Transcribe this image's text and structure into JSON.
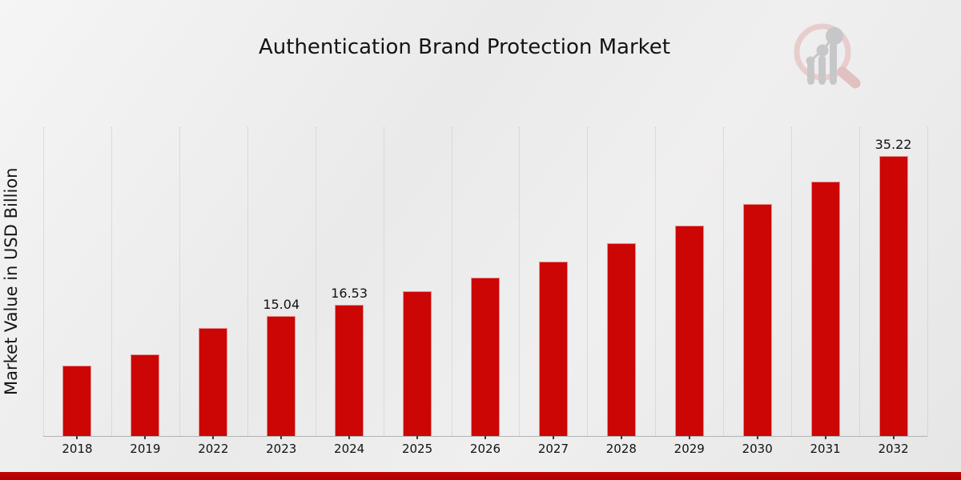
{
  "header": {
    "title": "Authentication Brand Protection Market"
  },
  "icons": {
    "logo": "magnifier-bar-chart-logo"
  },
  "chart_data": {
    "type": "bar",
    "title": "Authentication Brand Protection Market",
    "xlabel": "",
    "ylabel": "Market Value in USD Billion",
    "categories": [
      "2018",
      "2019",
      "2022",
      "2023",
      "2024",
      "2025",
      "2026",
      "2027",
      "2028",
      "2029",
      "2030",
      "2031",
      "2032"
    ],
    "values": [
      8.8,
      10.3,
      13.6,
      15.04,
      16.53,
      18.2,
      19.9,
      21.9,
      24.2,
      26.4,
      29.2,
      32.0,
      35.22
    ],
    "data_labels": [
      "",
      "",
      "",
      "15.04",
      "16.53",
      "",
      "",
      "",
      "",
      "",
      "",
      "",
      "35.22"
    ],
    "bar_color": "#cc0505",
    "ylim": [
      0,
      38.8
    ],
    "grid": "vertical-dotted",
    "legend": "none"
  },
  "footer": {
    "accent_color": "#b50202"
  }
}
